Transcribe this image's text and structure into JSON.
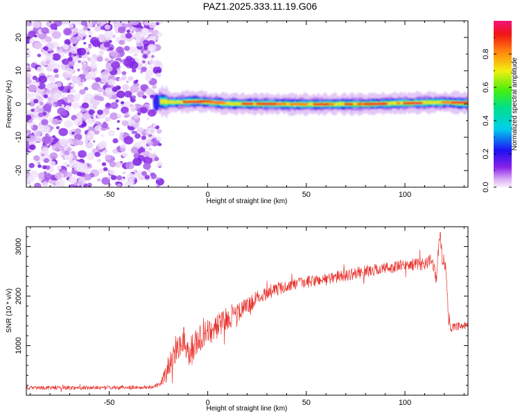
{
  "chart_data": [
    {
      "type": "heatmap",
      "title": "PAZ1.2025.333.11.19.G06",
      "xlabel": "Height of straight line (km)",
      "ylabel": "Frequency (Hz)",
      "xlim": [
        -92,
        132
      ],
      "ylim": [
        -25,
        25
      ],
      "xticks": [
        -50,
        0,
        50,
        100
      ],
      "yticks": [
        -20,
        -10,
        0,
        10,
        20
      ],
      "colorbar": {
        "label": "Normalized spectral amplitude",
        "range": [
          0,
          1
        ],
        "ticks": [
          "0.0",
          "0.2",
          "0.4",
          "0.6",
          "0.8"
        ]
      },
      "noise_region_x": [
        -92,
        -27
      ],
      "signal_center_hz": [
        {
          "x": -26,
          "y": 1.0
        },
        {
          "x": -20,
          "y": 0.5
        },
        {
          "x": -5,
          "y": 0.8
        },
        {
          "x": 10,
          "y": 0.1
        },
        {
          "x": 50,
          "y": -0.1
        },
        {
          "x": 80,
          "y": 0.0
        },
        {
          "x": 110,
          "y": 0.4
        },
        {
          "x": 120,
          "y": 0.5
        },
        {
          "x": 132,
          "y": 0.2
        }
      ]
    },
    {
      "type": "line",
      "title": "",
      "xlabel": "Height of straight line (km)",
      "ylabel": "SNR (10 * v/v)",
      "xlim": [
        -92,
        132
      ],
      "ylim": [
        0,
        3400
      ],
      "xticks": [
        -50,
        0,
        50,
        100
      ],
      "yticks": [
        1000,
        2000,
        3000
      ],
      "series": [
        {
          "name": "SNR",
          "color": "#e8302a",
          "points": [
            {
              "x": -92,
              "y": 150
            },
            {
              "x": -60,
              "y": 150
            },
            {
              "x": -30,
              "y": 160
            },
            {
              "x": -24,
              "y": 220
            },
            {
              "x": -21,
              "y": 450
            },
            {
              "x": -18,
              "y": 800
            },
            {
              "x": -15,
              "y": 1000
            },
            {
              "x": -12,
              "y": 1150
            },
            {
              "x": -10,
              "y": 850
            },
            {
              "x": -5,
              "y": 1100
            },
            {
              "x": 0,
              "y": 1250
            },
            {
              "x": 5,
              "y": 1400
            },
            {
              "x": 10,
              "y": 1550
            },
            {
              "x": 15,
              "y": 1650
            },
            {
              "x": 20,
              "y": 1800
            },
            {
              "x": 25,
              "y": 1950
            },
            {
              "x": 30,
              "y": 2080
            },
            {
              "x": 40,
              "y": 2200
            },
            {
              "x": 50,
              "y": 2280
            },
            {
              "x": 60,
              "y": 2350
            },
            {
              "x": 70,
              "y": 2420
            },
            {
              "x": 80,
              "y": 2500
            },
            {
              "x": 90,
              "y": 2560
            },
            {
              "x": 100,
              "y": 2620
            },
            {
              "x": 110,
              "y": 2660
            },
            {
              "x": 114,
              "y": 2720
            },
            {
              "x": 116,
              "y": 2350
            },
            {
              "x": 117,
              "y": 2950
            },
            {
              "x": 118,
              "y": 3200
            },
            {
              "x": 119,
              "y": 2750
            },
            {
              "x": 120,
              "y": 2650
            },
            {
              "x": 121,
              "y": 2550
            },
            {
              "x": 122,
              "y": 1600
            },
            {
              "x": 123,
              "y": 1350
            },
            {
              "x": 126,
              "y": 1380
            },
            {
              "x": 132,
              "y": 1400
            }
          ],
          "noise_amplitude": [
            {
              "x": -92,
              "y": 40
            },
            {
              "x": -24,
              "y": 40
            },
            {
              "x": -20,
              "y": 260
            },
            {
              "x": -8,
              "y": 300
            },
            {
              "x": 5,
              "y": 250
            },
            {
              "x": 25,
              "y": 160
            },
            {
              "x": 40,
              "y": 120
            },
            {
              "x": 100,
              "y": 120
            },
            {
              "x": 121,
              "y": 150
            },
            {
              "x": 123,
              "y": 80
            },
            {
              "x": 132,
              "y": 80
            }
          ]
        }
      ]
    }
  ]
}
